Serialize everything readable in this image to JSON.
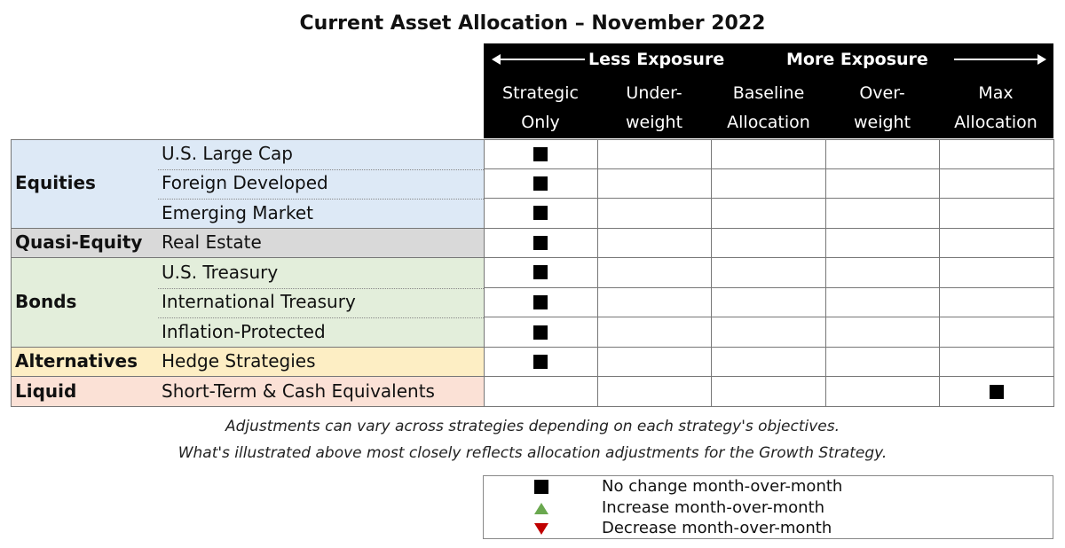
{
  "title": "Current Asset Allocation – November 2022",
  "header": {
    "less_exposure": "Less Exposure",
    "more_exposure": "More Exposure",
    "columns": [
      {
        "line1": "Strategic",
        "line2": "Only"
      },
      {
        "line1": "Under-",
        "line2": "weight"
      },
      {
        "line1": "Baseline",
        "line2": "Allocation"
      },
      {
        "line1": "Over-",
        "line2": "weight"
      },
      {
        "line1": "Max",
        "line2": "Allocation"
      }
    ]
  },
  "categories": [
    {
      "label": "Equities",
      "color": "#dde9f6",
      "items": [
        "U.S. Large Cap",
        "Foreign Developed",
        "Emerging Market"
      ]
    },
    {
      "label": "Quasi-Equity",
      "color": "#d9d9d9",
      "items": [
        "Real Estate"
      ]
    },
    {
      "label": "Bonds",
      "color": "#e3eedb",
      "items": [
        "U.S. Treasury",
        "International Treasury",
        "Inflation-Protected"
      ]
    },
    {
      "label": "Alternatives",
      "color": "#fdeec4",
      "items": [
        "Hedge Strategies"
      ]
    },
    {
      "label": "Liquid",
      "color": "#fbe1d6",
      "items": [
        "Short-Term & Cash Equivalents"
      ]
    }
  ],
  "allocations": [
    {
      "asset": "U.S. Large Cap",
      "column": "Strategic Only",
      "change": "no-change"
    },
    {
      "asset": "Foreign Developed",
      "column": "Strategic Only",
      "change": "no-change"
    },
    {
      "asset": "Emerging Market",
      "column": "Strategic Only",
      "change": "no-change"
    },
    {
      "asset": "Real Estate",
      "column": "Strategic Only",
      "change": "no-change"
    },
    {
      "asset": "U.S. Treasury",
      "column": "Strategic Only",
      "change": "no-change"
    },
    {
      "asset": "International Treasury",
      "column": "Strategic Only",
      "change": "no-change"
    },
    {
      "asset": "Inflation-Protected",
      "column": "Strategic Only",
      "change": "no-change"
    },
    {
      "asset": "Hedge Strategies",
      "column": "Strategic Only",
      "change": "no-change"
    },
    {
      "asset": "Short-Term & Cash Equivalents",
      "column": "Max Allocation",
      "change": "no-change"
    }
  ],
  "notes": {
    "line1": "Adjustments can vary across strategies depending on each strategy's objectives.",
    "line2": "What's illustrated above most closely reflects allocation adjustments for the Growth Strategy."
  },
  "legend": [
    {
      "symbol": "black-square-icon",
      "text": "No change month-over-month"
    },
    {
      "symbol": "green-up-triangle-icon",
      "text": "Increase month-over-month",
      "color": "#6aa84f"
    },
    {
      "symbol": "red-down-triangle-icon",
      "text": "Decrease month-over-month",
      "color": "#c00000"
    }
  ]
}
